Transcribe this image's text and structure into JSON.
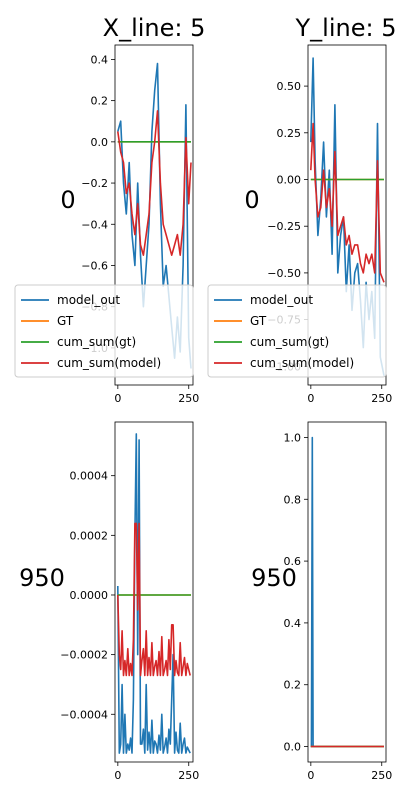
{
  "colors": {
    "model_out": "#1f77b4",
    "GT": "#ff7f0e",
    "cum_sum_gt": "#2ca02c",
    "cum_sum_model": "#d62728"
  },
  "chart_data": [
    {
      "type": "line",
      "title": "X_line: 5",
      "row_label": "0",
      "xlim": [
        -10,
        265
      ],
      "ylim": [
        -1.18,
        0.47
      ],
      "xticks": [
        0,
        250
      ],
      "yticks": [
        0.4,
        0.2,
        0.0,
        -0.2,
        -0.4,
        -0.6,
        -0.8,
        -1.0
      ],
      "ytick_labels": [
        "0.4",
        "0.2",
        "0.0",
        "−0.2",
        "−0.4",
        "−0.6",
        "−0.8",
        "−1.0"
      ],
      "legend": "lower-left",
      "series": [
        {
          "name": "model_out",
          "x": [
            0,
            10,
            20,
            30,
            40,
            50,
            60,
            70,
            80,
            90,
            100,
            110,
            120,
            130,
            140,
            150,
            160,
            170,
            180,
            190,
            200,
            210,
            220,
            230,
            240,
            250,
            258
          ],
          "y": [
            0.05,
            0.1,
            -0.2,
            -0.35,
            -0.1,
            -0.45,
            -0.6,
            -0.2,
            -0.55,
            -0.8,
            -0.6,
            -0.4,
            0.05,
            0.25,
            0.38,
            -0.3,
            -0.7,
            -0.6,
            -0.75,
            -0.9,
            -1.05,
            -0.85,
            -1.02,
            -0.6,
            0.18,
            -0.95,
            -1.1
          ]
        },
        {
          "name": "GT",
          "x": [
            0,
            258
          ],
          "y": [
            0,
            0
          ]
        },
        {
          "name": "cum_sum(gt)",
          "x": [
            0,
            258
          ],
          "y": [
            0,
            0
          ]
        },
        {
          "name": "cum_sum(model)",
          "x": [
            0,
            10,
            20,
            30,
            40,
            50,
            60,
            70,
            80,
            90,
            100,
            110,
            120,
            130,
            140,
            150,
            160,
            170,
            180,
            190,
            200,
            210,
            220,
            230,
            240,
            250,
            258
          ],
          "y": [
            0.05,
            -0.05,
            -0.1,
            -0.25,
            -0.2,
            -0.35,
            -0.45,
            -0.3,
            -0.5,
            -0.55,
            -0.45,
            -0.35,
            -0.1,
            0.0,
            0.15,
            -0.2,
            -0.4,
            -0.45,
            -0.5,
            -0.55,
            -0.5,
            -0.45,
            -0.55,
            -0.4,
            0.02,
            -0.3,
            -0.1
          ]
        }
      ]
    },
    {
      "type": "line",
      "title": "Y_line: 5",
      "row_label": "0",
      "xlim": [
        -10,
        265
      ],
      "ylim": [
        -1.1,
        0.72
      ],
      "xticks": [
        0,
        250
      ],
      "yticks": [
        0.5,
        0.25,
        0.0,
        -0.25,
        -0.5,
        -0.75,
        -1.0
      ],
      "ytick_labels": [
        "0.50",
        "0.25",
        "0.00",
        "−0.25",
        "−0.50",
        "−0.75",
        "−1.00"
      ],
      "legend": "lower-left",
      "series": [
        {
          "name": "model_out",
          "x": [
            0,
            8,
            15,
            25,
            35,
            45,
            55,
            65,
            75,
            85,
            95,
            105,
            115,
            125,
            135,
            145,
            155,
            165,
            175,
            185,
            195,
            205,
            215,
            225,
            235,
            245,
            258
          ],
          "y": [
            0.2,
            0.65,
            0.1,
            -0.3,
            -0.1,
            0.2,
            -0.2,
            0.05,
            -0.4,
            0.4,
            -0.5,
            -0.3,
            -0.2,
            -0.6,
            -0.35,
            -0.7,
            -0.5,
            -0.45,
            -0.65,
            -0.9,
            -0.55,
            -0.75,
            -0.6,
            -0.85,
            0.3,
            -0.95,
            -1.05
          ]
        },
        {
          "name": "GT",
          "x": [
            0,
            258
          ],
          "y": [
            0,
            0
          ]
        },
        {
          "name": "cum_sum(gt)",
          "x": [
            0,
            258
          ],
          "y": [
            0,
            0
          ]
        },
        {
          "name": "cum_sum(model)",
          "x": [
            0,
            8,
            15,
            25,
            35,
            45,
            55,
            65,
            75,
            85,
            95,
            105,
            115,
            125,
            135,
            145,
            155,
            165,
            175,
            185,
            195,
            205,
            215,
            225,
            235,
            245,
            258
          ],
          "y": [
            0.05,
            0.3,
            0.0,
            -0.2,
            -0.15,
            0.05,
            -0.15,
            -0.05,
            -0.25,
            0.15,
            -0.3,
            -0.25,
            -0.2,
            -0.35,
            -0.3,
            -0.4,
            -0.35,
            -0.35,
            -0.45,
            -0.5,
            -0.4,
            -0.45,
            -0.4,
            -0.5,
            0.1,
            -0.5,
            -0.55
          ]
        }
      ]
    },
    {
      "type": "line",
      "title": "",
      "row_label": "950",
      "xlim": [
        -10,
        265
      ],
      "ylim": [
        -0.00056,
        0.00058
      ],
      "xticks": [
        0,
        250
      ],
      "yticks": [
        0.0004,
        0.0002,
        0.0,
        -0.0002,
        -0.0004
      ],
      "ytick_labels": [
        "0.0004",
        "0.0002",
        "0.0000",
        "−0.0002",
        "−0.0004"
      ],
      "legend": "none",
      "series": [
        {
          "name": "model_out",
          "x": [
            0,
            5,
            10,
            15,
            20,
            25,
            30,
            35,
            40,
            45,
            50,
            55,
            60,
            65,
            70,
            75,
            80,
            85,
            90,
            95,
            100,
            105,
            110,
            115,
            120,
            125,
            130,
            135,
            140,
            145,
            150,
            155,
            160,
            165,
            170,
            175,
            180,
            185,
            190,
            195,
            200,
            205,
            210,
            215,
            220,
            225,
            230,
            235,
            240,
            245,
            250,
            255
          ],
          "y": [
            3e-05,
            -0.00053,
            -0.0005,
            -0.0003,
            -0.00053,
            -0.0004,
            -0.00053,
            -0.0005,
            -0.00052,
            -0.00048,
            -0.00053,
            -0.00035,
            0.0002,
            0.00054,
            -0.0002,
            0.00052,
            -0.0005,
            -0.0005,
            -0.00045,
            -0.00053,
            -0.0003,
            -0.00052,
            -0.00046,
            -0.00053,
            -0.00042,
            -0.00053,
            -0.00049,
            -0.0005,
            -0.00053,
            -0.00047,
            -0.00052,
            -0.0004,
            -0.00053,
            -0.00051,
            -0.00048,
            -0.00053,
            -0.00045,
            -0.0005,
            -0.00035,
            -0.0002,
            -0.00053,
            -0.00046,
            -0.00052,
            -0.00053,
            -0.00043,
            -0.00053,
            -0.0005,
            -0.00048,
            -0.00053,
            -0.00051,
            -0.00052,
            -0.00053
          ]
        },
        {
          "name": "GT",
          "x": [
            0,
            258
          ],
          "y": [
            0,
            0
          ]
        },
        {
          "name": "cum_sum(gt)",
          "x": [
            0,
            258
          ],
          "y": [
            0,
            0
          ]
        },
        {
          "name": "cum_sum(model)",
          "x": [
            0,
            5,
            10,
            15,
            20,
            25,
            30,
            35,
            40,
            45,
            50,
            55,
            60,
            65,
            70,
            75,
            80,
            85,
            90,
            95,
            100,
            105,
            110,
            115,
            120,
            125,
            130,
            135,
            140,
            145,
            150,
            155,
            160,
            165,
            170,
            175,
            180,
            185,
            190,
            195,
            200,
            205,
            210,
            215,
            220,
            225,
            230,
            235,
            240,
            245,
            250,
            255
          ],
          "y": [
            0.0,
            -0.0002,
            -0.00025,
            -0.00012,
            -0.00027,
            -0.00022,
            -0.00027,
            -0.00018,
            -0.00027,
            -0.00023,
            -0.00027,
            -0.00015,
            0.00024,
            0.00024,
            -5e-05,
            0.00024,
            -0.00027,
            -0.00022,
            -0.00018,
            -0.00027,
            -0.00012,
            -0.00027,
            -0.00021,
            -0.00027,
            -0.00016,
            -0.00027,
            -0.00024,
            -0.00022,
            -0.00027,
            -0.00019,
            -0.00027,
            -0.00014,
            -0.00027,
            -0.00025,
            -0.00022,
            -0.00027,
            -0.00015,
            -0.00025,
            -0.0001,
            -0.0001,
            -0.00027,
            -0.00022,
            -0.00026,
            -0.00027,
            -0.00016,
            -0.00027,
            -0.00024,
            -0.00021,
            -0.00027,
            -0.00023,
            -0.00025,
            -0.00027
          ]
        }
      ]
    },
    {
      "type": "line",
      "title": "",
      "row_label": "950",
      "xlim": [
        -10,
        265
      ],
      "ylim": [
        -0.05,
        1.05
      ],
      "xticks": [
        0,
        250
      ],
      "yticks": [
        0.0,
        0.2,
        0.4,
        0.6,
        0.8,
        1.0
      ],
      "ytick_labels": [
        "0.0",
        "0.2",
        "0.4",
        "0.6",
        "0.8",
        "1.0"
      ],
      "legend": "none",
      "series": [
        {
          "name": "model_out",
          "x": [
            0,
            2,
            5,
            8,
            258
          ],
          "y": [
            0,
            0,
            1.0,
            0,
            0
          ]
        },
        {
          "name": "GT",
          "x": [
            0,
            258
          ],
          "y": [
            0,
            0
          ]
        },
        {
          "name": "cum_sum(gt)",
          "x": [
            0,
            258
          ],
          "y": [
            0,
            0
          ]
        },
        {
          "name": "cum_sum(model)",
          "x": [
            0,
            258
          ],
          "y": [
            0,
            0
          ]
        }
      ]
    }
  ]
}
